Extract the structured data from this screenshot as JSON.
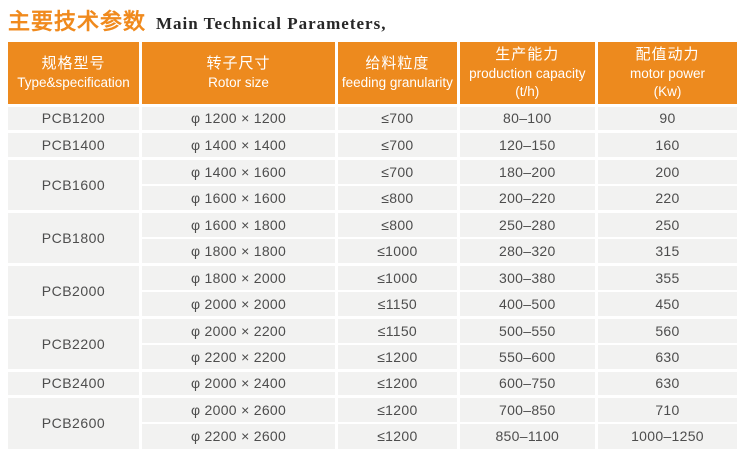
{
  "title": {
    "zh": "主要技术参数",
    "en": "Main Technical Parameters,"
  },
  "colors": {
    "header_bg": "#ED8A1E",
    "title_accent": "#F08A1D",
    "cell_bg": "#F2F2F1",
    "cell_text": "#4D4D4D",
    "header_text": "#FFFFFF"
  },
  "table": {
    "columns": [
      {
        "zh": "规格型号",
        "en": "Type&specification",
        "unit": ""
      },
      {
        "zh": "转子尺寸",
        "en": "Rotor size",
        "unit": ""
      },
      {
        "zh": "给料粒度",
        "en": "feeding granularity",
        "unit": ""
      },
      {
        "zh": "生产能力",
        "en": "production capacity",
        "unit": "(t/h)"
      },
      {
        "zh": "配值动力",
        "en": "motor power",
        "unit": "(Kw)"
      }
    ],
    "groups": [
      {
        "model": "PCB1200",
        "rows": [
          [
            "φ 1200 × 1200",
            "≤700",
            "80–100",
            "90"
          ]
        ]
      },
      {
        "model": "PCB1400",
        "rows": [
          [
            "φ 1400 × 1400",
            "≤700",
            "120–150",
            "160"
          ]
        ]
      },
      {
        "model": "PCB1600",
        "rows": [
          [
            "φ 1400 × 1600",
            "≤700",
            "180–200",
            "200"
          ],
          [
            "φ 1600 × 1600",
            "≤800",
            "200–220",
            "220"
          ]
        ]
      },
      {
        "model": "PCB1800",
        "rows": [
          [
            "φ 1600 × 1800",
            "≤800",
            "250–280",
            "250"
          ],
          [
            "φ 1800 × 1800",
            "≤1000",
            "280–320",
            "315"
          ]
        ]
      },
      {
        "model": "PCB2000",
        "rows": [
          [
            "φ 1800 × 2000",
            "≤1000",
            "300–380",
            "355"
          ],
          [
            "φ 2000 × 2000",
            "≤1150",
            "400–500",
            "450"
          ]
        ]
      },
      {
        "model": "PCB2200",
        "rows": [
          [
            "φ 2000 × 2200",
            "≤1150",
            "500–550",
            "560"
          ],
          [
            "φ 2200 × 2200",
            "≤1200",
            "550–600",
            "630"
          ]
        ]
      },
      {
        "model": "PCB2400",
        "rows": [
          [
            "φ 2000 × 2400",
            "≤1200",
            "600–750",
            "630"
          ]
        ]
      },
      {
        "model": "PCB2600",
        "rows": [
          [
            "φ 2000 × 2600",
            "≤1200",
            "700–850",
            "710"
          ],
          [
            "φ 2200 × 2600",
            "≤1200",
            "850–1100",
            "1000–1250"
          ]
        ]
      }
    ]
  }
}
